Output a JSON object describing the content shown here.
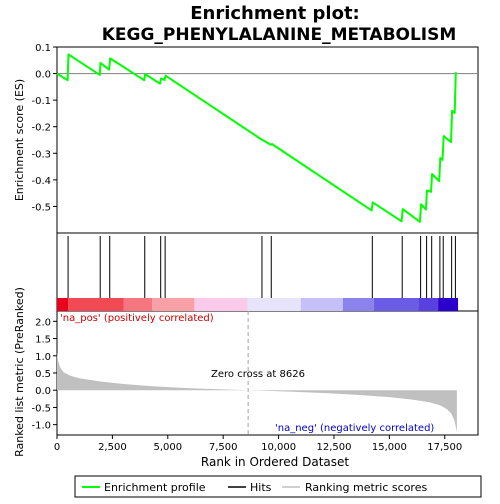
{
  "title_line1": "Enrichment plot:",
  "title_line2": "KEGG_PHENYLALANINE_METABOLISM",
  "chart_data": {
    "type": "line",
    "xlabel": "Rank in Ordered Dataset",
    "xlim": [
      0,
      19000
    ],
    "x_ticks": [
      "0",
      "2,500",
      "5,000",
      "7,500",
      "10,000",
      "12,500",
      "15,000",
      "17,500"
    ],
    "x_tick_values": [
      0,
      2500,
      5000,
      7500,
      10000,
      12500,
      15000,
      17500
    ],
    "es_panel": {
      "ylabel": "Enrichment score (ES)",
      "ylim": [
        -0.6,
        0.1
      ],
      "y_ticks": [
        "0.1",
        "0.0",
        "-0.1",
        "-0.2",
        "-0.3",
        "-0.4",
        "-0.5"
      ],
      "y_tick_values": [
        0.1,
        0.0,
        -0.1,
        -0.2,
        -0.3,
        -0.4,
        -0.5
      ],
      "line_color": "#00ff00",
      "points": [
        [
          0,
          0.0
        ],
        [
          480,
          -0.025
        ],
        [
          520,
          0.072
        ],
        [
          1930,
          -0.005
        ],
        [
          1960,
          0.04
        ],
        [
          2350,
          0.015
        ],
        [
          2400,
          0.057
        ],
        [
          3930,
          -0.025
        ],
        [
          3980,
          -0.002
        ],
        [
          4650,
          -0.038
        ],
        [
          4700,
          -0.018
        ],
        [
          4850,
          -0.024
        ],
        [
          4900,
          -0.008
        ],
        [
          9230,
          -0.248
        ],
        [
          9280,
          -0.25
        ],
        [
          9650,
          -0.268
        ],
        [
          9700,
          -0.265
        ],
        [
          14200,
          -0.515
        ],
        [
          14250,
          -0.485
        ],
        [
          15550,
          -0.556
        ],
        [
          15600,
          -0.51
        ],
        [
          16380,
          -0.558
        ],
        [
          16430,
          -0.492
        ],
        [
          16650,
          -0.512
        ],
        [
          16700,
          -0.44
        ],
        [
          16880,
          -0.445
        ],
        [
          16930,
          -0.378
        ],
        [
          17250,
          -0.405
        ],
        [
          17300,
          -0.318
        ],
        [
          17400,
          -0.325
        ],
        [
          17450,
          -0.235
        ],
        [
          17780,
          -0.258
        ],
        [
          17830,
          -0.14
        ],
        [
          17950,
          -0.148
        ],
        [
          18000,
          0.005
        ]
      ]
    },
    "hits": [
      500,
      1950,
      2380,
      3960,
      4680,
      4880,
      9250,
      9670,
      14230,
      15580,
      16410,
      16680,
      16910,
      17280,
      17430,
      17810,
      17980
    ],
    "color_bar": {
      "segments": [
        [
          0,
          500,
          "#e8001c"
        ],
        [
          500,
          3000,
          "#f24a54"
        ],
        [
          3000,
          4300,
          "#f5767e"
        ],
        [
          4300,
          6200,
          "#f7a0a6"
        ],
        [
          6200,
          8600,
          "#fbc9ea"
        ],
        [
          8600,
          11000,
          "#e6e3fb"
        ],
        [
          11000,
          12900,
          "#c6c0f8"
        ],
        [
          12900,
          14300,
          "#8b82ec"
        ],
        [
          14300,
          16300,
          "#6a5ce4"
        ],
        [
          16300,
          17200,
          "#5841de"
        ],
        [
          17200,
          18100,
          "#2a00cc"
        ]
      ]
    },
    "rank_panel": {
      "ylabel": "Ranked list metric (PreRanked)",
      "ylim": [
        -1.3,
        2.3
      ],
      "y_ticks": [
        "2.0",
        "1.5",
        "1.0",
        "0.5",
        "0.0",
        "-0.5",
        "-1.0"
      ],
      "y_tick_values": [
        2.0,
        1.5,
        1.0,
        0.5,
        0.0,
        -0.5,
        -1.0
      ],
      "fill_color": "#c0c0c0",
      "curve": [
        [
          0,
          1.1
        ],
        [
          50,
          0.85
        ],
        [
          150,
          0.65
        ],
        [
          300,
          0.52
        ],
        [
          600,
          0.42
        ],
        [
          1000,
          0.35
        ],
        [
          2000,
          0.25
        ],
        [
          3000,
          0.18
        ],
        [
          4000,
          0.13
        ],
        [
          5000,
          0.09
        ],
        [
          6000,
          0.06
        ],
        [
          7000,
          0.035
        ],
        [
          8000,
          0.012
        ],
        [
          8626,
          0.0
        ],
        [
          9500,
          -0.02
        ],
        [
          10500,
          -0.04
        ],
        [
          12000,
          -0.08
        ],
        [
          13500,
          -0.13
        ],
        [
          15000,
          -0.2
        ],
        [
          16000,
          -0.27
        ],
        [
          16800,
          -0.35
        ],
        [
          17300,
          -0.44
        ],
        [
          17600,
          -0.55
        ],
        [
          17800,
          -0.68
        ],
        [
          17950,
          -0.9
        ],
        [
          18050,
          -1.22
        ]
      ],
      "zero_cross_x": 8626,
      "pos_label": "'na_pos' (positively correlated)",
      "neg_label": "'na_neg' (negatively correlated)",
      "zero_cross_label": "Zero cross at 8626"
    },
    "legend": [
      {
        "label": "Enrichment profile",
        "color": "#00ff00"
      },
      {
        "label": "Hits",
        "color": "#000000"
      },
      {
        "label": "Ranking metric scores",
        "color": "#c0c0c0"
      }
    ]
  }
}
